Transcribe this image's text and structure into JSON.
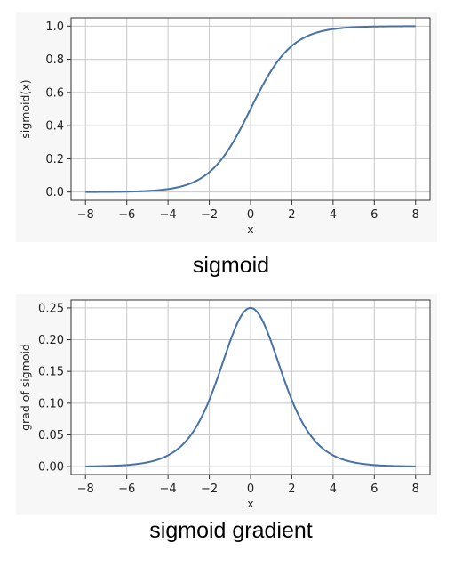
{
  "colors": {
    "line": "#4572a7",
    "grid": "#c8c8c8",
    "frame": "#333333"
  },
  "chart_data": [
    {
      "type": "line",
      "function": "sigmoid",
      "caption": "sigmoid",
      "xlabel": "x",
      "ylabel": "sigmoid(x)",
      "xlim": [
        -8.7,
        8.7
      ],
      "ylim": [
        -0.05,
        1.05
      ],
      "xticks": [
        -8,
        -6,
        -4,
        -2,
        0,
        2,
        4,
        6,
        8
      ],
      "xtick_labels": [
        "−8",
        "−6",
        "−4",
        "−2",
        "0",
        "2",
        "4",
        "6",
        "8"
      ],
      "yticks": [
        0.0,
        0.2,
        0.4,
        0.6,
        0.8,
        1.0
      ],
      "ytick_labels": [
        "0.0",
        "0.2",
        "0.4",
        "0.6",
        "0.8",
        "1.0"
      ],
      "grid": true,
      "x": [
        -8,
        -7,
        -6,
        -5,
        -4,
        -3,
        -2,
        -1,
        0,
        1,
        2,
        3,
        4,
        5,
        6,
        7,
        8
      ],
      "y": [
        0.0003,
        0.0009,
        0.0025,
        0.0067,
        0.018,
        0.0474,
        0.1192,
        0.2689,
        0.5,
        0.7311,
        0.8808,
        0.9526,
        0.982,
        0.9933,
        0.9975,
        0.9991,
        0.9997
      ]
    },
    {
      "type": "line",
      "function": "sigmoid_gradient",
      "caption": "sigmoid gradient",
      "xlabel": "x",
      "ylabel": "grad of sigmoid",
      "xlim": [
        -8.7,
        8.7
      ],
      "ylim": [
        -0.0125,
        0.2625
      ],
      "xticks": [
        -8,
        -6,
        -4,
        -2,
        0,
        2,
        4,
        6,
        8
      ],
      "xtick_labels": [
        "−8",
        "−6",
        "−4",
        "−2",
        "0",
        "2",
        "4",
        "6",
        "8"
      ],
      "yticks": [
        0.0,
        0.05,
        0.1,
        0.15,
        0.2,
        0.25
      ],
      "ytick_labels": [
        "0.00",
        "0.05",
        "0.10",
        "0.15",
        "0.20",
        "0.25"
      ],
      "grid": true,
      "x": [
        -8,
        -7,
        -6,
        -5,
        -4,
        -3,
        -2,
        -1,
        0,
        1,
        2,
        3,
        4,
        5,
        6,
        7,
        8
      ],
      "y": [
        0.0003,
        0.0009,
        0.0025,
        0.0066,
        0.0177,
        0.0452,
        0.105,
        0.1966,
        0.25,
        0.1966,
        0.105,
        0.0452,
        0.0177,
        0.0066,
        0.0025,
        0.0009,
        0.0003
      ]
    }
  ]
}
